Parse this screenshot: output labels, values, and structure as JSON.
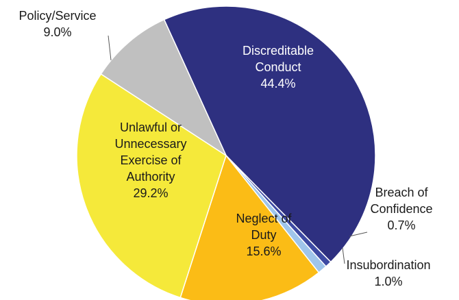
{
  "chart_data": {
    "type": "pie",
    "title": "",
    "slices": [
      {
        "label_lines": [
          "Discreditable",
          "Conduct"
        ],
        "value_text": "44.4%",
        "value": 44.4,
        "color": "#2e3080",
        "label_color": "#ffffff"
      },
      {
        "label_lines": [
          "Breach of",
          "Confidence"
        ],
        "value_text": "0.7%",
        "value": 0.7,
        "color": "#3d4aa3",
        "label_color": "#1a1a1a"
      },
      {
        "label_lines": [
          "Insubordination"
        ],
        "value_text": "1.0%",
        "value": 1.0,
        "color": "#9fc5ea",
        "label_color": "#1a1a1a"
      },
      {
        "label_lines": [
          "Neglect of",
          "Duty"
        ],
        "value_text": "15.6%",
        "value": 15.6,
        "color": "#fbbc16",
        "label_color": "#1a1a1a"
      },
      {
        "label_lines": [
          "Unlawful or",
          "Unnecessary",
          "Exercise of",
          "Authority"
        ],
        "value_text": "29.2%",
        "value": 29.2,
        "color": "#f5e93a",
        "label_color": "#1a1a1a"
      },
      {
        "label_lines": [
          "Policy/Service"
        ],
        "value_text": "9.0%",
        "value": 9.0,
        "color": "#c0c0c0",
        "label_color": "#1a1a1a"
      }
    ]
  }
}
